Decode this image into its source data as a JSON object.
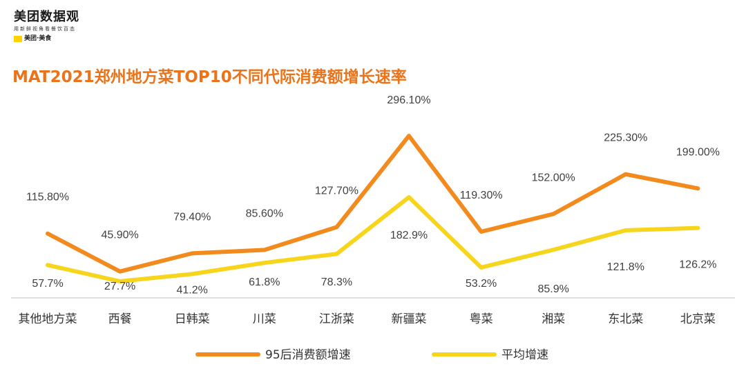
{
  "logo": {
    "title": "美团数据观",
    "subtitle": "用新鲜视角看餐饮百态",
    "brand": "美团·美食",
    "badge_text": "美团"
  },
  "chart_data": {
    "type": "line",
    "title": "MAT2021郑州地方菜TOP10不同代际消费额增长速率",
    "categories": [
      "其他地方菜",
      "西餐",
      "日韩菜",
      "川菜",
      "江浙菜",
      "新疆菜",
      "粤菜",
      "湘菜",
      "东北菜",
      "北京菜"
    ],
    "series": [
      {
        "name": "95后消费额增速",
        "color": "#f28a1e",
        "values": [
          115.8,
          45.9,
          79.4,
          85.6,
          127.7,
          296.1,
          119.3,
          152.0,
          225.3,
          199.0
        ],
        "labels": [
          "115.80%",
          "45.90%",
          "79.40%",
          "85.60%",
          "127.70%",
          "296.10%",
          "119.30%",
          "152.00%",
          "225.30%",
          "199.00%"
        ]
      },
      {
        "name": "平均增速",
        "color": "#f7d51d",
        "values": [
          57.7,
          27.7,
          41.2,
          61.8,
          78.3,
          182.9,
          53.2,
          85.9,
          121.8,
          126.2
        ],
        "labels": [
          "57.7%",
          "27.7%",
          "41.2%",
          "61.8%",
          "78.3%",
          "182.9%",
          "53.2%",
          "85.9%",
          "121.8%",
          "126.2%"
        ]
      }
    ],
    "legend_position": "bottom",
    "grid": false
  }
}
